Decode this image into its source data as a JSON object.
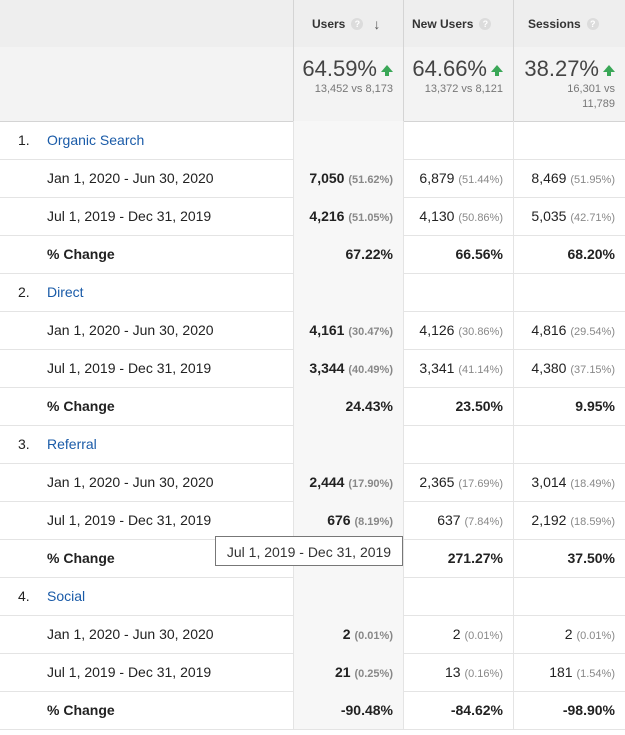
{
  "header": {
    "columns": [
      {
        "label": "Users",
        "help": "?",
        "sort": "↓"
      },
      {
        "label": "New Users",
        "help": "?"
      },
      {
        "label": "Sessions",
        "help": "?"
      }
    ]
  },
  "summary": [
    {
      "value": "64.59%",
      "compare": "13,452 vs 8,173"
    },
    {
      "value": "64.66%",
      "compare": "13,372 vs 8,121"
    },
    {
      "value": "38.27%",
      "compare_line1": "16,301 vs",
      "compare_line2": "11,789"
    }
  ],
  "groups": [
    {
      "num": "1.",
      "name": "Organic Search",
      "rows": [
        {
          "label": "Jan 1, 2020 - Jun 30, 2020",
          "users": "7,050",
          "users_pct": "(51.62%)",
          "new": "6,879",
          "new_pct": "(51.44%)",
          "sessions": "8,469",
          "sessions_pct": "(51.95%)"
        },
        {
          "label": "Jul 1, 2019 - Dec 31, 2019",
          "users": "4,216",
          "users_pct": "(51.05%)",
          "new": "4,130",
          "new_pct": "(50.86%)",
          "sessions": "5,035",
          "sessions_pct": "(42.71%)"
        }
      ],
      "change": {
        "label": "% Change",
        "users": "67.22%",
        "new": "66.56%",
        "sessions": "68.20%"
      }
    },
    {
      "num": "2.",
      "name": "Direct",
      "rows": [
        {
          "label": "Jan 1, 2020 - Jun 30, 2020",
          "users": "4,161",
          "users_pct": "(30.47%)",
          "new": "4,126",
          "new_pct": "(30.86%)",
          "sessions": "4,816",
          "sessions_pct": "(29.54%)"
        },
        {
          "label": "Jul 1, 2019 - Dec 31, 2019",
          "users": "3,344",
          "users_pct": "(40.49%)",
          "new": "3,341",
          "new_pct": "(41.14%)",
          "sessions": "4,380",
          "sessions_pct": "(37.15%)"
        }
      ],
      "change": {
        "label": "% Change",
        "users": "24.43%",
        "new": "23.50%",
        "sessions": "9.95%"
      }
    },
    {
      "num": "3.",
      "name": "Referral",
      "rows": [
        {
          "label": "Jan 1, 2020 - Jun 30, 2020",
          "users": "2,444",
          "users_pct": "(17.90%)",
          "new": "2,365",
          "new_pct": "(17.69%)",
          "sessions": "3,014",
          "sessions_pct": "(18.49%)"
        },
        {
          "label": "Jul 1, 2019 - Dec 31, 2019",
          "users": "676",
          "users_pct": "(8.19%)",
          "new": "637",
          "new_pct": "(7.84%)",
          "sessions": "2,192",
          "sessions_pct": "(18.59%)"
        }
      ],
      "change": {
        "label": "% Change",
        "users": "",
        "new": "271.27%",
        "sessions": "37.50%"
      }
    },
    {
      "num": "4.",
      "name": "Social",
      "rows": [
        {
          "label": "Jan 1, 2020 - Jun 30, 2020",
          "users": "2",
          "users_pct": "(0.01%)",
          "new": "2",
          "new_pct": "(0.01%)",
          "sessions": "2",
          "sessions_pct": "(0.01%)"
        },
        {
          "label": "Jul 1, 2019 - Dec 31, 2019",
          "users": "21",
          "users_pct": "(0.25%)",
          "new": "13",
          "new_pct": "(0.16%)",
          "sessions": "181",
          "sessions_pct": "(1.54%)"
        }
      ],
      "change": {
        "label": "% Change",
        "users": "-90.48%",
        "new": "-84.62%",
        "sessions": "-98.90%"
      }
    }
  ],
  "tooltip": {
    "text": "Jul 1, 2019 - Dec 31, 2019"
  },
  "colors": {
    "accent_link": "#1a5ba8",
    "up_arrow": "#3aa757"
  }
}
